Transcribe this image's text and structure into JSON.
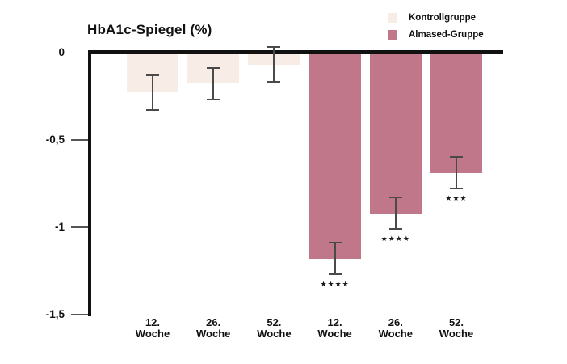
{
  "page": {
    "background": "#ffffff"
  },
  "chart_data": {
    "type": "bar",
    "title": "HbA1c-Spiegel (%)",
    "xlabel": "",
    "ylabel": "",
    "ylim": [
      -1.5,
      0
    ],
    "grid": false,
    "yticks": [
      {
        "label": "0",
        "value": 0
      },
      {
        "label": "-0,5",
        "value": -0.5
      },
      {
        "label": "-1",
        "value": -1
      },
      {
        "label": "-1,5",
        "value": -1.5
      }
    ],
    "legend": {
      "position": "top-right",
      "items": [
        {
          "label": "Kontrollgruppe",
          "color": "#f8ece7"
        },
        {
          "label": "Almased-Gruppe",
          "color": "#c0778a"
        }
      ]
    },
    "categories": [
      "12. Woche",
      "26. Woche",
      "52. Woche",
      "12. Woche",
      "26. Woche",
      "52. Woche"
    ],
    "bars": [
      {
        "category": "12. Woche",
        "series": "Kontrollgruppe",
        "value": -0.23,
        "error": 0.1,
        "significance": ""
      },
      {
        "category": "26. Woche",
        "series": "Kontrollgruppe",
        "value": -0.18,
        "error": 0.09,
        "significance": ""
      },
      {
        "category": "52. Woche",
        "series": "Kontrollgruppe",
        "value": -0.07,
        "error": 0.1,
        "significance": ""
      },
      {
        "category": "12. Woche",
        "series": "Almased-Gruppe",
        "value": -1.18,
        "error": 0.09,
        "significance": "****"
      },
      {
        "category": "26. Woche",
        "series": "Almased-Gruppe",
        "value": -0.92,
        "error": 0.09,
        "significance": "****"
      },
      {
        "category": "52. Woche",
        "series": "Almased-Gruppe",
        "value": -0.69,
        "error": 0.09,
        "significance": "***"
      }
    ],
    "colors": {
      "axis": "#111111",
      "tick_line": "#555555",
      "error_bar": "#4a4a4a",
      "text": "#111111"
    }
  }
}
